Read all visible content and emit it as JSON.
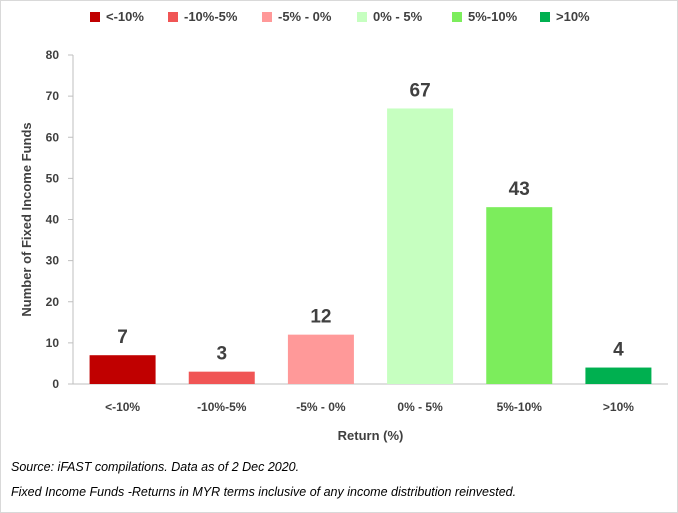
{
  "chart_data": {
    "type": "bar",
    "categories": [
      "<-10%",
      "-10%-5%",
      "-5% - 0%",
      "0% - 5%",
      "5%-10%",
      ">10%"
    ],
    "values": [
      7,
      3,
      12,
      67,
      43,
      4
    ],
    "colors": [
      "#c00000",
      "#f05555",
      "#ff9999",
      "#c6ffc0",
      "#7ced5c",
      "#00b050"
    ],
    "legend": [
      "<-10%",
      "-10%-5%",
      "-5% - 0%",
      "0% - 5%",
      "5%-10%",
      ">10%"
    ],
    "legend_position": "top",
    "xlabel": "Return (%)",
    "ylabel": "Number of Fixed Income Funds",
    "ylim": [
      0,
      80
    ],
    "yticks": [
      0,
      10,
      20,
      30,
      40,
      50,
      60,
      70,
      80
    ],
    "grid": false,
    "data_labels": true
  },
  "footnotes": {
    "source": "Source: iFAST compilations. Data as of 2 Dec 2020.",
    "note": "Fixed Income Funds -Returns in MYR terms inclusive of any income distribution reinvested."
  }
}
